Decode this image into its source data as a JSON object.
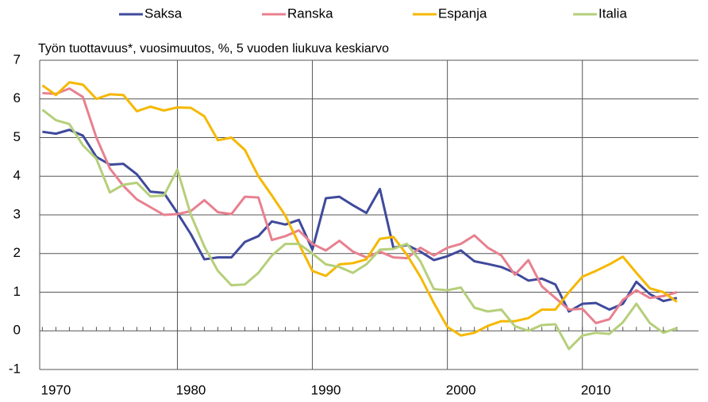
{
  "chart_data": {
    "type": "line",
    "subtitle": "Työn tuottavuus*, vuosimuutos, %, 5 vuoden liukuva keskiarvo",
    "x": [
      1969,
      1970,
      1971,
      1972,
      1973,
      1974,
      1975,
      1976,
      1977,
      1978,
      1979,
      1980,
      1981,
      1982,
      1983,
      1984,
      1985,
      1986,
      1987,
      1988,
      1989,
      1990,
      1991,
      1992,
      1993,
      1994,
      1995,
      1996,
      1997,
      1998,
      1999,
      2000,
      2001,
      2002,
      2003,
      2004,
      2005,
      2006,
      2007,
      2008,
      2009,
      2010,
      2011,
      2012,
      2013,
      2014,
      2015,
      2016
    ],
    "series": [
      {
        "name": "Saksa",
        "color": "#3f4a9b",
        "values": [
          5.15,
          5.1,
          5.2,
          5.05,
          4.5,
          4.3,
          4.32,
          4.05,
          3.6,
          3.57,
          3.05,
          2.5,
          1.85,
          1.9,
          1.9,
          2.3,
          2.45,
          2.83,
          2.75,
          2.87,
          2.1,
          3.43,
          3.47,
          3.25,
          3.05,
          3.67,
          2.15,
          2.22,
          2.05,
          1.83,
          1.93,
          2.08,
          1.8,
          1.73,
          1.65,
          1.5,
          1.3,
          1.35,
          1.2,
          0.5,
          0.7,
          0.72,
          0.55,
          0.7,
          1.27,
          0.95,
          0.77,
          0.85
        ]
      },
      {
        "name": "Ranska",
        "color": "#e8808f",
        "values": [
          6.15,
          6.13,
          6.27,
          6.05,
          5.0,
          4.2,
          3.75,
          3.4,
          3.2,
          3.0,
          3.02,
          3.1,
          3.38,
          3.07,
          3.02,
          3.47,
          3.45,
          2.35,
          2.45,
          2.6,
          2.25,
          2.08,
          2.33,
          2.05,
          1.9,
          2.05,
          1.9,
          1.88,
          2.15,
          1.95,
          2.15,
          2.25,
          2.47,
          2.15,
          1.95,
          1.45,
          1.83,
          1.15,
          0.85,
          0.55,
          0.57,
          0.2,
          0.3,
          0.8,
          1.05,
          0.85,
          0.9,
          1.0
        ]
      },
      {
        "name": "Espanja",
        "color": "#f5b800",
        "values": [
          6.35,
          6.1,
          6.43,
          6.37,
          6.0,
          6.12,
          6.1,
          5.68,
          5.8,
          5.7,
          5.78,
          5.77,
          5.55,
          4.93,
          5.0,
          4.68,
          4.0,
          3.5,
          2.98,
          2.25,
          1.55,
          1.42,
          1.72,
          1.75,
          1.85,
          2.38,
          2.43,
          1.97,
          1.4,
          0.72,
          0.1,
          -0.12,
          -0.05,
          0.13,
          0.25,
          0.25,
          0.33,
          0.55,
          0.55,
          1.0,
          1.4,
          1.55,
          1.72,
          1.92,
          1.5,
          1.1,
          1.0,
          0.75
        ]
      },
      {
        "name": "Italia",
        "color": "#b5cf7a",
        "values": [
          5.72,
          5.45,
          5.35,
          4.8,
          4.45,
          3.58,
          3.78,
          3.83,
          3.48,
          3.5,
          4.17,
          3.0,
          2.18,
          1.55,
          1.18,
          1.2,
          1.5,
          1.95,
          2.25,
          2.25,
          2.0,
          1.72,
          1.65,
          1.5,
          1.72,
          2.1,
          2.12,
          2.25,
          1.8,
          1.08,
          1.05,
          1.12,
          0.6,
          0.5,
          0.55,
          0.12,
          0.0,
          0.15,
          0.17,
          -0.47,
          -0.12,
          -0.05,
          -0.08,
          0.22,
          0.7,
          0.2,
          -0.05,
          0.07
        ]
      }
    ],
    "xlim": [
      1968.8,
      2017.6
    ],
    "xticks": [
      1970,
      1980,
      1990,
      2000,
      2010
    ],
    "xgrid": [
      1979,
      1989,
      1999,
      2009
    ],
    "ylim": [
      -1,
      7
    ],
    "yticks": [
      -1,
      0,
      1,
      2,
      3,
      4,
      5,
      6,
      7
    ],
    "grid": true,
    "legend": "top"
  }
}
